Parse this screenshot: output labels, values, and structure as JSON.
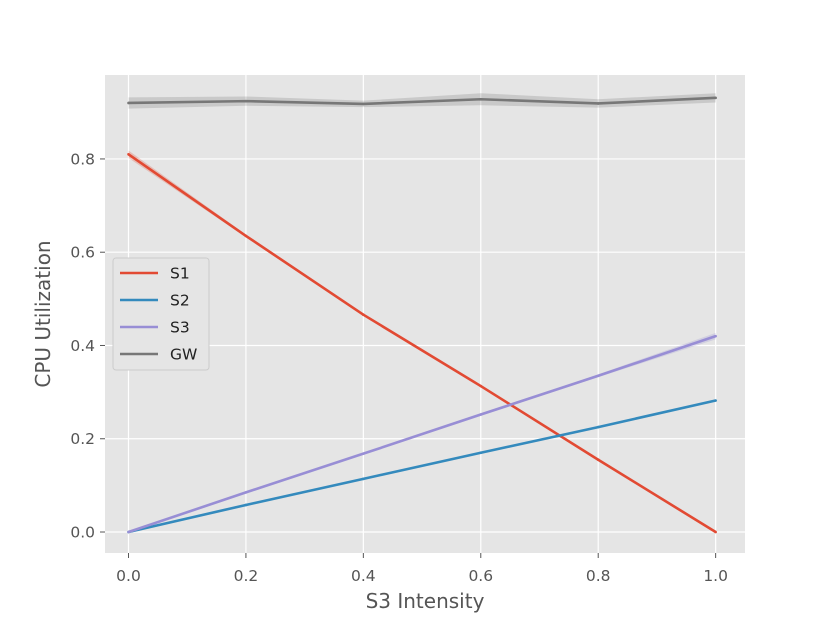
{
  "chart_data": {
    "type": "line",
    "title": "",
    "xlabel": "S3 Intensity",
    "ylabel": "CPU Utilization",
    "x": [
      0.0,
      0.2,
      0.4,
      0.6,
      0.8,
      1.0
    ],
    "xlim": [
      -0.04,
      1.05
    ],
    "ylim": [
      -0.045,
      0.98
    ],
    "xticks": [
      0.0,
      0.2,
      0.4,
      0.6,
      0.8,
      1.0
    ],
    "xtick_labels": [
      "0.0",
      "0.2",
      "0.4",
      "0.6",
      "0.8",
      "1.0"
    ],
    "yticks": [
      0.0,
      0.2,
      0.4,
      0.6,
      0.8
    ],
    "ytick_labels": [
      "0.0",
      "0.2",
      "0.4",
      "0.6",
      "0.8"
    ],
    "grid": true,
    "style": "ggplot",
    "legend_position": "center-left",
    "series": [
      {
        "name": "S1",
        "color": "#E24A33",
        "values": [
          0.81,
          0.635,
          0.466,
          0.313,
          0.155,
          0.0
        ],
        "band_halfwidth": [
          0.008,
          0.003,
          0.002,
          0.002,
          0.002,
          0.001
        ]
      },
      {
        "name": "S2",
        "color": "#348ABD",
        "values": [
          0.0,
          0.058,
          0.114,
          0.17,
          0.225,
          0.282
        ],
        "band_halfwidth": [
          0.001,
          0.001,
          0.001,
          0.001,
          0.001,
          0.002
        ]
      },
      {
        "name": "S3",
        "color": "#988ED5",
        "values": [
          0.0,
          0.085,
          0.168,
          0.252,
          0.335,
          0.42
        ],
        "band_halfwidth": [
          0.001,
          0.002,
          0.002,
          0.003,
          0.003,
          0.007
        ]
      },
      {
        "name": "GW",
        "color": "#777777",
        "values": [
          0.92,
          0.924,
          0.918,
          0.928,
          0.919,
          0.931
        ],
        "band_halfwidth": [
          0.012,
          0.01,
          0.007,
          0.013,
          0.009,
          0.01
        ]
      }
    ]
  }
}
